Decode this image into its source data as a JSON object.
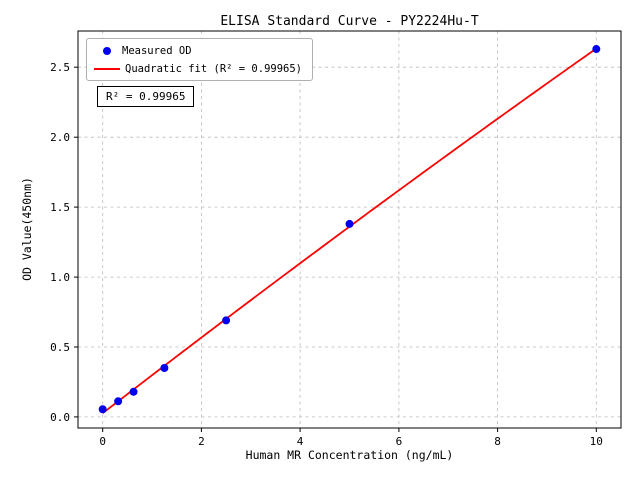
{
  "chart_data": {
    "type": "scatter",
    "title": "ELISA Standard Curve - PY2224Hu-T",
    "xlabel": "Human MR Concentration (ng/mL)",
    "ylabel": "OD Value(450nm)",
    "xlim": [
      -0.5,
      10.5
    ],
    "ylim": [
      -0.079,
      2.759
    ],
    "x_ticks": [
      0,
      2,
      4,
      6,
      8,
      10
    ],
    "x_tick_labels": [
      "0",
      "2",
      "4",
      "6",
      "8",
      "10"
    ],
    "y_ticks": [
      0.0,
      0.5,
      1.0,
      1.5,
      2.0,
      2.5
    ],
    "y_tick_labels": [
      "0.0",
      "0.5",
      "1.0",
      "1.5",
      "2.0",
      "2.5"
    ],
    "grid": "dashed",
    "legend_position": "upper left",
    "series": [
      {
        "name": "Measured OD",
        "type": "scatter",
        "color": "#0000ee",
        "x": [
          0,
          0.313,
          0.625,
          1.25,
          2.5,
          5,
          10
        ],
        "y": [
          0.055,
          0.112,
          0.18,
          0.35,
          0.69,
          1.38,
          2.63
        ]
      },
      {
        "name": "Quadratic fit (R² = 0.99965)",
        "type": "line",
        "fit": "quadratic",
        "color": "#ff0000"
      }
    ],
    "annotation": "R² = 0.99965",
    "r_squared": 0.99965,
    "colors": {
      "point": "#0000ee",
      "line": "#ff0000",
      "grid": "#bbbbbb",
      "axis": "#000000"
    }
  }
}
